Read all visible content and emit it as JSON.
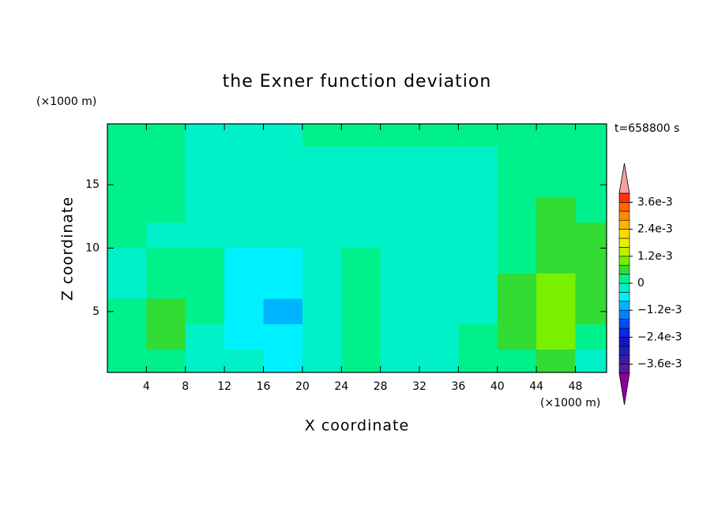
{
  "chart_data": {
    "type": "contour",
    "title": "the Exner function deviation",
    "xlabel": "X coordinate",
    "ylabel": "Z coordinate",
    "x_unit": "(×1000 m)",
    "y_unit": "(×1000 m)",
    "time_label": "t=658800 s",
    "xlim": [
      0,
      51.2
    ],
    "ylim": [
      0.2,
      19.8
    ],
    "xticks": [
      4,
      8,
      12,
      16,
      20,
      24,
      28,
      32,
      36,
      40,
      44,
      48
    ],
    "yticks": [
      5,
      10,
      15
    ],
    "x": [
      2,
      6,
      10,
      14,
      18,
      22,
      26,
      30,
      34,
      38,
      42,
      46,
      50
    ],
    "y": [
      19,
      17,
      15,
      13,
      11,
      9,
      7,
      5,
      3,
      1
    ],
    "z": [
      [
        0.0002,
        0.0002,
        -0.0002,
        -0.0002,
        -0.0002,
        0.0002,
        0.0002,
        0.0002,
        0.0002,
        0.0002,
        0.0002,
        0.0002,
        0.0002
      ],
      [
        0.0002,
        0.0002,
        -0.0002,
        -0.0002,
        -0.0002,
        -0.0002,
        -0.0002,
        -0.0002,
        -0.0002,
        -0.0002,
        0.0002,
        0.0002,
        0.0002
      ],
      [
        0.0002,
        0.0002,
        -0.0002,
        -0.0002,
        -0.0002,
        -0.0002,
        -0.0002,
        -0.0002,
        -0.0002,
        -0.0002,
        0.0002,
        0.0002,
        0.0002
      ],
      [
        0.0002,
        0.0002,
        -0.0002,
        -0.0002,
        -0.0002,
        -0.0002,
        -0.0002,
        -0.0002,
        -0.0002,
        -0.0002,
        0.0002,
        0.0006,
        0.0002
      ],
      [
        0.0002,
        -0.0002,
        -0.0002,
        -0.0002,
        -0.0002,
        -0.0002,
        -0.0002,
        -0.0002,
        -0.0002,
        -0.0002,
        0.0002,
        0.0006,
        0.0006
      ],
      [
        -0.0002,
        0.0002,
        0.0002,
        -0.0006,
        -0.0006,
        -0.0002,
        0.0002,
        -0.0002,
        -0.0002,
        -0.0002,
        0.0002,
        0.0006,
        0.0006
      ],
      [
        -0.0002,
        0.0002,
        0.0002,
        -0.0006,
        -0.0006,
        -0.0002,
        0.0002,
        -0.0002,
        -0.0002,
        -0.0002,
        0.0006,
        0.001,
        0.0006
      ],
      [
        0.0002,
        0.0006,
        0.0002,
        -0.0006,
        -0.001,
        -0.0002,
        0.0002,
        -0.0002,
        -0.0002,
        -0.0002,
        0.0006,
        0.001,
        0.0006
      ],
      [
        0.0002,
        0.0006,
        -0.0002,
        -0.0006,
        -0.0006,
        -0.0002,
        0.0002,
        -0.0002,
        -0.0002,
        0.0002,
        0.0006,
        0.001,
        0.0002
      ],
      [
        0.0002,
        0.0002,
        -0.0002,
        -0.0002,
        -0.0006,
        -0.0002,
        0.0002,
        -0.0002,
        -0.0002,
        0.0002,
        0.0002,
        0.0006,
        -0.0002
      ]
    ],
    "levels": [
      -0.004,
      -0.0036,
      -0.0032,
      -0.0028,
      -0.0024,
      -0.002,
      -0.0016,
      -0.0012,
      -0.0008,
      -0.0004,
      0,
      0.0004,
      0.0008,
      0.0012,
      0.0016,
      0.002,
      0.0024,
      0.0028,
      0.0032,
      0.0036,
      0.004
    ],
    "colors": [
      "#5a189a",
      "#3c1aa8",
      "#2020b0",
      "#1414c8",
      "#0a28e0",
      "#0050f0",
      "#0082ff",
      "#00b4ff",
      "#00f0ff",
      "#00f0c8",
      "#00f08c",
      "#32dc32",
      "#78f000",
      "#bef000",
      "#e6f000",
      "#ffdc00",
      "#ffb400",
      "#ff8c00",
      "#ff6400",
      "#ff3200",
      "#e60000"
    ],
    "over_color": "#f4a0a0",
    "under_color": "#8c00a0",
    "colorbar_ticks": [
      {
        "value": 0.0036,
        "label": "3.6e-3"
      },
      {
        "value": 0.0024,
        "label": "2.4e-3"
      },
      {
        "value": 0.0012,
        "label": "1.2e-3"
      },
      0,
      {
        "value": -0.0012,
        "label": "−1.2e-3"
      },
      {
        "value": -0.0024,
        "label": "−2.4e-3"
      },
      {
        "value": -0.0036,
        "label": "−3.6e-3"
      }
    ]
  }
}
